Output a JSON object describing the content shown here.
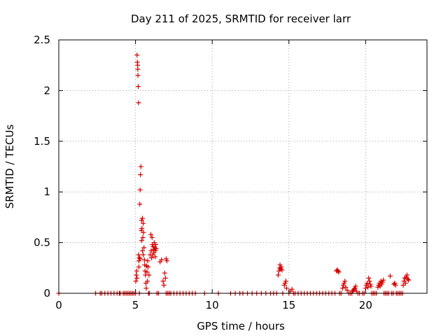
{
  "chart_data": {
    "type": "scatter",
    "title": "Day 211 of 2025, SRMTID for receiver larr",
    "xlabel": "GPS time / hours",
    "ylabel": "SRMTID / TECUs",
    "xlim": [
      0,
      24
    ],
    "ylim": [
      0,
      2.5
    ],
    "xticks": [
      "0",
      "5",
      "10",
      "15",
      "20"
    ],
    "xtick_values": [
      0,
      5,
      10,
      15,
      20
    ],
    "yticks": [
      "0",
      "0.5",
      "1",
      "1.5",
      "2",
      "2.5"
    ],
    "ytick_values": [
      0,
      0.5,
      1,
      1.5,
      2,
      2.5
    ],
    "grid": true,
    "marker": "plus",
    "color": "#d40000",
    "series": [
      {
        "name": "SRMTID",
        "x": [
          0.0,
          2.4,
          2.7,
          2.8,
          3.0,
          3.2,
          3.4,
          3.6,
          3.8,
          3.95,
          4.0,
          4.2,
          4.3,
          4.4,
          4.5,
          4.6,
          4.7,
          4.8,
          4.9,
          5.0,
          5.02,
          5.05,
          5.08,
          5.1,
          5.1,
          5.12,
          5.14,
          5.15,
          5.16,
          5.18,
          5.2,
          5.2,
          5.22,
          5.22,
          5.25,
          5.25,
          5.28,
          5.3,
          5.3,
          5.32,
          5.35,
          5.38,
          5.4,
          5.4,
          5.42,
          5.45,
          5.45,
          5.48,
          5.5,
          5.5,
          5.52,
          5.55,
          5.58,
          5.6,
          5.62,
          5.65,
          5.68,
          5.7,
          5.72,
          5.75,
          5.78,
          5.8,
          5.82,
          5.85,
          5.88,
          5.9,
          5.95,
          6.0,
          6.02,
          6.05,
          6.08,
          6.1,
          6.12,
          6.15,
          6.18,
          6.2,
          6.22,
          6.25,
          6.28,
          6.3,
          6.32,
          6.35,
          6.4,
          6.5,
          6.6,
          6.7,
          6.8,
          6.85,
          6.9,
          6.95,
          7.0,
          7.0,
          7.05,
          7.1,
          7.2,
          7.3,
          7.5,
          7.7,
          7.9,
          8.1,
          8.3,
          8.5,
          8.7,
          8.9,
          9.5,
          10.4,
          11.2,
          11.5,
          11.8,
          12.0,
          12.3,
          12.6,
          12.9,
          13.2,
          13.5,
          13.8,
          14.0,
          14.2,
          14.3,
          14.35,
          14.4,
          14.42,
          14.45,
          14.5,
          14.55,
          14.6,
          14.7,
          14.75,
          14.8,
          14.85,
          15.0,
          15.1,
          15.2,
          15.3,
          15.4,
          15.6,
          15.8,
          16.0,
          16.2,
          16.4,
          16.6,
          16.8,
          17.0,
          17.2,
          17.4,
          17.6,
          17.8,
          18.0,
          18.1,
          18.15,
          18.2,
          18.25,
          18.3,
          18.4,
          18.5,
          18.55,
          18.6,
          18.65,
          18.7,
          18.8,
          18.9,
          19.0,
          19.1,
          19.15,
          19.2,
          19.25,
          19.3,
          19.35,
          19.4,
          19.5,
          19.6,
          19.8,
          19.9,
          20.0,
          20.05,
          20.1,
          20.15,
          20.2,
          20.25,
          20.3,
          20.35,
          20.4,
          20.5,
          20.6,
          20.7,
          20.8,
          20.85,
          20.9,
          20.95,
          21.0,
          21.05,
          21.1,
          21.15,
          21.2,
          21.3,
          21.4,
          21.5,
          21.6,
          21.7,
          21.8,
          21.85,
          21.9,
          21.95,
          22.0,
          22.1,
          22.2,
          22.3,
          22.4,
          22.45,
          22.5,
          22.55,
          22.6,
          22.65,
          22.7,
          22.75,
          22.8
        ],
        "y": [
          0.0,
          0.0,
          0.0,
          0.0,
          0.0,
          0.0,
          0.0,
          0.0,
          0.0,
          0.0,
          0.0,
          0.0,
          0.0,
          0.0,
          0.0,
          0.0,
          0.0,
          0.0,
          0.0,
          0.0,
          0.12,
          0.18,
          0.22,
          0.15,
          2.35,
          2.28,
          2.25,
          2.21,
          2.15,
          2.04,
          1.88,
          0.38,
          0.32,
          0.26,
          0.35,
          0.0,
          0.88,
          1.02,
          0.34,
          1.17,
          1.25,
          0.62,
          0.72,
          0.52,
          0.64,
          0.74,
          0.42,
          0.55,
          0.69,
          0.38,
          0.6,
          0.45,
          0.33,
          0.28,
          0.22,
          0.18,
          0.1,
          0.05,
          0.27,
          0.21,
          0.12,
          0.32,
          0.26,
          0.0,
          0.18,
          0.0,
          0.38,
          0.58,
          0.42,
          0.35,
          0.55,
          0.48,
          0.38,
          0.46,
          0.43,
          0.4,
          0.5,
          0.45,
          0.36,
          0.42,
          0.48,
          0.44,
          0.0,
          0.0,
          0.31,
          0.33,
          0.12,
          0.08,
          0.2,
          0.15,
          0.0,
          0.34,
          0.32,
          0.0,
          0.0,
          0.0,
          0.0,
          0.0,
          0.0,
          0.0,
          0.0,
          0.0,
          0.0,
          0.0,
          0.0,
          0.0,
          0.0,
          0.0,
          0.0,
          0.0,
          0.0,
          0.0,
          0.0,
          0.0,
          0.0,
          0.0,
          0.0,
          0.0,
          0.18,
          0.22,
          0.25,
          0.28,
          0.24,
          0.26,
          0.23,
          0.0,
          0.08,
          0.1,
          0.12,
          0.05,
          0.0,
          0.02,
          0.04,
          0.0,
          0.0,
          0.0,
          0.0,
          0.0,
          0.0,
          0.0,
          0.0,
          0.0,
          0.0,
          0.0,
          0.0,
          0.0,
          0.0,
          0.0,
          0.22,
          0.23,
          0.22,
          0.21,
          0.0,
          0.0,
          0.05,
          0.08,
          0.1,
          0.12,
          0.06,
          0.03,
          0.0,
          0.0,
          0.0,
          0.02,
          0.03,
          0.04,
          0.05,
          0.07,
          0.02,
          0.0,
          0.0,
          0.0,
          0.0,
          0.05,
          0.08,
          0.1,
          0.06,
          0.15,
          0.12,
          0.09,
          0.07,
          0.0,
          0.0,
          0.0,
          0.0,
          0.06,
          0.08,
          0.1,
          0.07,
          0.12,
          0.09,
          0.11,
          0.13,
          0.0,
          0.0,
          0.0,
          0.0,
          0.17,
          0.0,
          0.0,
          0.09,
          0.1,
          0.08,
          0.0,
          0.0,
          0.0,
          0.0,
          0.0,
          0.08,
          0.12,
          0.15,
          0.1,
          0.16,
          0.18,
          0.14,
          0.13
        ]
      }
    ]
  }
}
